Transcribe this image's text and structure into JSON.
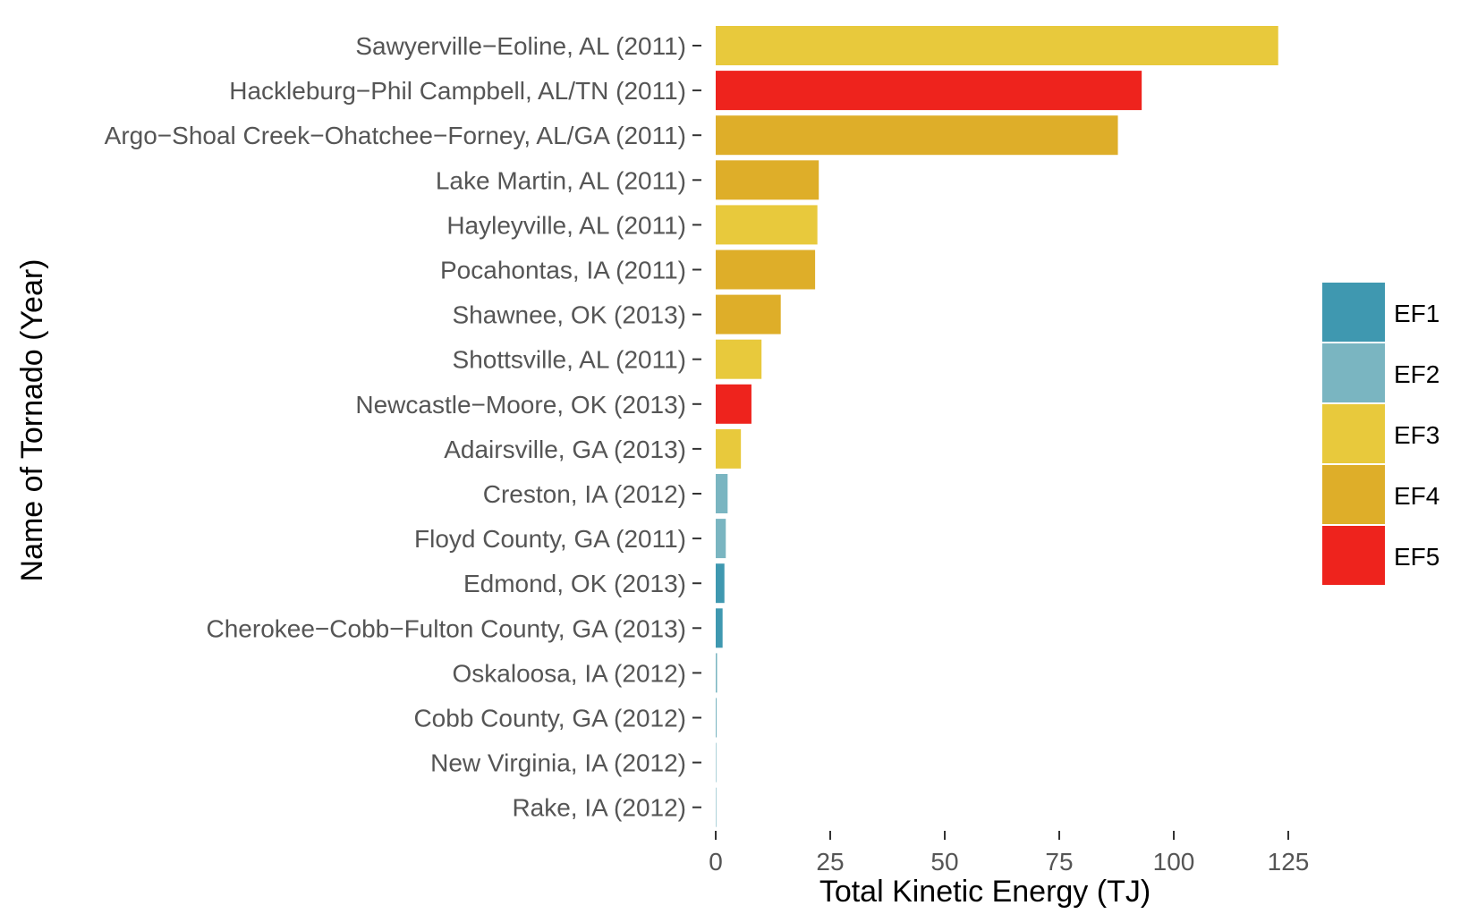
{
  "chart_data": {
    "type": "bar",
    "orientation": "horizontal",
    "xlabel": "Total Kinetic Energy (TJ)",
    "ylabel": "Name of Tornado (Year)",
    "xlim": [
      0,
      125
    ],
    "xticks": [
      0,
      25,
      50,
      75,
      100,
      125
    ],
    "grid": false,
    "legend_position": "right",
    "legend": [
      {
        "name": "EF1",
        "color": "#3f98b0"
      },
      {
        "name": "EF2",
        "color": "#7ab5c1"
      },
      {
        "name": "EF3",
        "color": "#e8c93c"
      },
      {
        "name": "EF4",
        "color": "#deae29"
      },
      {
        "name": "EF5",
        "color": "#ee231d"
      }
    ],
    "bars": [
      {
        "label": "Sawyerville−Eoline, AL (2011)",
        "value": 122.8,
        "rating": "EF3"
      },
      {
        "label": "Hackleburg−Phil Campbell, AL/TN (2011)",
        "value": 93.0,
        "rating": "EF5"
      },
      {
        "label": "Argo−Shoal Creek−Ohatchee−Forney, AL/GA (2011)",
        "value": 87.8,
        "rating": "EF4"
      },
      {
        "label": "Lake Martin, AL (2011)",
        "value": 22.5,
        "rating": "EF4"
      },
      {
        "label": "Hayleyville, AL (2011)",
        "value": 22.2,
        "rating": "EF3"
      },
      {
        "label": "Pocahontas, IA (2011)",
        "value": 21.7,
        "rating": "EF4"
      },
      {
        "label": "Shawnee, OK (2013)",
        "value": 14.2,
        "rating": "EF4"
      },
      {
        "label": "Shottsville, AL (2011)",
        "value": 10.0,
        "rating": "EF3"
      },
      {
        "label": "Newcastle−Moore, OK (2013)",
        "value": 7.8,
        "rating": "EF5"
      },
      {
        "label": "Adairsville, GA (2013)",
        "value": 5.5,
        "rating": "EF3"
      },
      {
        "label": "Creston, IA (2012)",
        "value": 2.6,
        "rating": "EF2"
      },
      {
        "label": "Floyd County, GA (2011)",
        "value": 2.2,
        "rating": "EF2"
      },
      {
        "label": "Edmond, OK (2013)",
        "value": 1.9,
        "rating": "EF1"
      },
      {
        "label": "Cherokee−Cobb−Fulton County, GA (2013)",
        "value": 1.5,
        "rating": "EF1"
      },
      {
        "label": "Oskaloosa, IA (2012)",
        "value": 0.3,
        "rating": "EF2"
      },
      {
        "label": "Cobb County, GA (2012)",
        "value": 0.2,
        "rating": "EF2"
      },
      {
        "label": "New Virginia, IA (2012)",
        "value": 0.05,
        "rating": "EF2"
      },
      {
        "label": "Rake, IA (2012)",
        "value": 0.03,
        "rating": "EF2"
      }
    ]
  }
}
